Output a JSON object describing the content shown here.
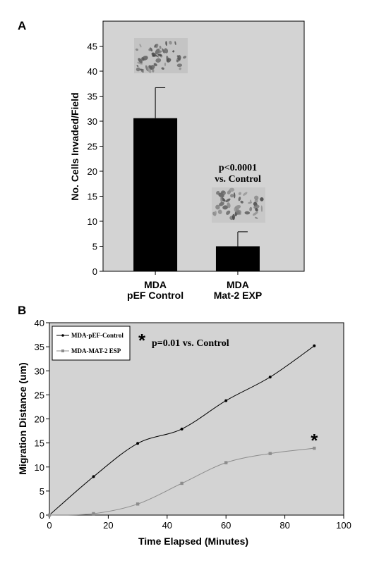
{
  "colors": {
    "plot_bg": "#d3d3d3",
    "bar": "#000000",
    "series_control": "#000000",
    "series_mat2": "#8c8c8c"
  },
  "panel_a": {
    "label": "A",
    "micrograph_icon": "invasion-micrograph-icon",
    "annotation_line1": "p<0.0001",
    "annotation_line2": "vs. Control"
  },
  "panel_b": {
    "label": "B",
    "annotation_star": "*",
    "annotation_text": "p=0.01 vs. Control",
    "end_star": "*"
  },
  "chart_data": [
    {
      "type": "bar",
      "ylabel": "No. Cells Invaded/Field",
      "xlabel": "",
      "ylim": [
        0,
        50
      ],
      "yticks": [
        0,
        5,
        10,
        15,
        20,
        25,
        30,
        35,
        40,
        45
      ],
      "grid": false,
      "categories": [
        {
          "line1": "MDA",
          "line2": "pEF Control"
        },
        {
          "line1": "MDA",
          "line2": "Mat-2 EXP"
        }
      ],
      "values": [
        30.6,
        5.0
      ],
      "error_upper": [
        36.7,
        7.9
      ]
    },
    {
      "type": "line",
      "xlabel": "Time Elapsed (Minutes)",
      "ylabel": "Migration Distance (um)",
      "xlim": [
        0,
        100
      ],
      "ylim": [
        0,
        40
      ],
      "xticks": [
        0,
        20,
        40,
        60,
        80,
        100
      ],
      "yticks": [
        0,
        5,
        10,
        15,
        20,
        25,
        30,
        35,
        40
      ],
      "grid": false,
      "legend_position": "top-left",
      "series": [
        {
          "name": "MDA-pEF-Control",
          "x": [
            0,
            15,
            30,
            45,
            60,
            75,
            90
          ],
          "y": [
            0,
            8.0,
            14.9,
            17.9,
            23.8,
            28.7,
            35.2
          ]
        },
        {
          "name": "MDA-MAT-2 ESP",
          "x": [
            0,
            15,
            30,
            45,
            60,
            75,
            90
          ],
          "y": [
            0,
            0.3,
            2.3,
            6.6,
            10.9,
            12.8,
            13.9
          ]
        }
      ]
    }
  ]
}
